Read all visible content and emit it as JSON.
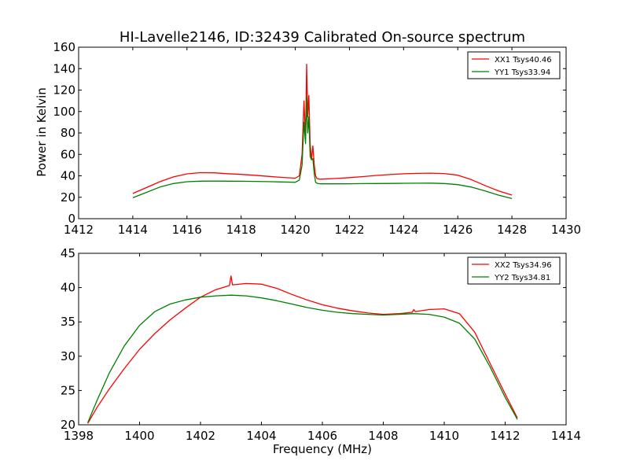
{
  "figure": {
    "title": "HI-Lavelle2146, ID:32439 Calibrated On-source spectrum",
    "ylabel": "Power in Kelvin",
    "xlabel": "Frequency (MHz)"
  },
  "chart_data": [
    {
      "type": "line",
      "title": "HI-Lavelle2146, ID:32439 Calibrated On-source spectrum",
      "xlabel": "",
      "ylabel": "Power in Kelvin",
      "xlim": [
        1412,
        1430
      ],
      "ylim": [
        0,
        160
      ],
      "xticks": [
        1412,
        1414,
        1416,
        1418,
        1420,
        1422,
        1424,
        1426,
        1428,
        1430
      ],
      "yticks": [
        0,
        20,
        40,
        60,
        80,
        100,
        120,
        140,
        160
      ],
      "grid": false,
      "legend_position": "top-right",
      "series": [
        {
          "name": "XX1 Tsys40.46",
          "color": "#ff0000",
          "x": [
            1414.0,
            1414.5,
            1415.0,
            1415.5,
            1416.0,
            1416.5,
            1417.0,
            1417.5,
            1418.0,
            1418.5,
            1419.0,
            1419.5,
            1420.0,
            1420.15,
            1420.25,
            1420.32,
            1420.38,
            1420.42,
            1420.46,
            1420.5,
            1420.55,
            1420.6,
            1420.65,
            1420.7,
            1420.75,
            1420.8,
            1420.9,
            1421.0,
            1421.5,
            1422.0,
            1422.5,
            1423.0,
            1423.5,
            1424.0,
            1424.5,
            1425.0,
            1425.5,
            1426.0,
            1426.5,
            1427.0,
            1427.5,
            1428.0
          ],
          "y": [
            23.5,
            29.0,
            34.5,
            39.0,
            41.8,
            42.9,
            42.8,
            42.0,
            41.3,
            40.5,
            39.5,
            38.5,
            37.8,
            40.0,
            60.0,
            110.0,
            75.0,
            144.0,
            95.0,
            115.0,
            70.0,
            55.0,
            68.0,
            50.0,
            40.0,
            37.5,
            36.8,
            36.9,
            37.5,
            38.3,
            39.3,
            40.4,
            41.2,
            41.9,
            42.3,
            42.5,
            42.1,
            40.6,
            36.5,
            31.0,
            26.0,
            22.0
          ]
        },
        {
          "name": "YY1 Tsys33.94",
          "color": "#008000",
          "x": [
            1414.0,
            1414.5,
            1415.0,
            1415.5,
            1416.0,
            1416.5,
            1417.0,
            1417.5,
            1418.0,
            1418.5,
            1419.0,
            1419.5,
            1420.0,
            1420.15,
            1420.25,
            1420.32,
            1420.38,
            1420.42,
            1420.46,
            1420.5,
            1420.55,
            1420.6,
            1420.65,
            1420.7,
            1420.75,
            1420.8,
            1420.9,
            1421.0,
            1421.5,
            1422.0,
            1422.5,
            1423.0,
            1423.5,
            1424.0,
            1424.5,
            1425.0,
            1425.5,
            1426.0,
            1426.5,
            1427.0,
            1427.5,
            1428.0
          ],
          "y": [
            19.5,
            24.5,
            29.5,
            32.8,
            34.5,
            35.0,
            35.1,
            35.0,
            34.9,
            34.8,
            34.6,
            34.3,
            34.0,
            36.0,
            50.0,
            90.0,
            70.0,
            114.0,
            80.0,
            95.0,
            58.0,
            55.0,
            56.0,
            42.0,
            34.0,
            33.0,
            32.6,
            32.5,
            32.5,
            32.6,
            32.7,
            32.8,
            32.9,
            33.0,
            33.1,
            33.2,
            32.8,
            31.8,
            29.5,
            26.0,
            22.0,
            18.8
          ]
        }
      ]
    },
    {
      "type": "line",
      "title": "",
      "xlabel": "Frequency (MHz)",
      "ylabel": "",
      "xlim": [
        1398,
        1414
      ],
      "ylim": [
        20,
        45
      ],
      "xticks": [
        1398,
        1400,
        1402,
        1404,
        1406,
        1408,
        1410,
        1412,
        1414
      ],
      "yticks": [
        20,
        25,
        30,
        35,
        40,
        45
      ],
      "grid": false,
      "legend_position": "top-right",
      "series": [
        {
          "name": "XX2 Tsys34.96",
          "color": "#ff0000",
          "x": [
            1398.3,
            1398.6,
            1399.0,
            1399.5,
            1400.0,
            1400.5,
            1401.0,
            1401.5,
            1402.0,
            1402.5,
            1402.95,
            1403.0,
            1403.05,
            1403.5,
            1404.0,
            1404.5,
            1405.0,
            1405.5,
            1406.0,
            1406.5,
            1407.0,
            1407.5,
            1408.0,
            1408.5,
            1408.95,
            1409.0,
            1409.05,
            1409.5,
            1410.0,
            1410.5,
            1411.0,
            1411.5,
            1412.0,
            1412.4
          ],
          "y": [
            20.2,
            22.5,
            25.2,
            28.2,
            31.0,
            33.3,
            35.3,
            37.0,
            38.6,
            39.7,
            40.3,
            41.7,
            40.4,
            40.6,
            40.5,
            39.9,
            39.0,
            38.2,
            37.5,
            37.0,
            36.6,
            36.3,
            36.1,
            36.2,
            36.4,
            36.8,
            36.5,
            36.8,
            36.9,
            36.2,
            33.5,
            29.0,
            24.5,
            21.0
          ]
        },
        {
          "name": "YY2 Tsys34.81",
          "color": "#008000",
          "x": [
            1398.3,
            1398.6,
            1399.0,
            1399.5,
            1400.0,
            1400.5,
            1401.0,
            1401.5,
            1402.0,
            1402.5,
            1403.0,
            1403.5,
            1404.0,
            1404.5,
            1405.0,
            1405.5,
            1406.0,
            1406.5,
            1407.0,
            1407.5,
            1408.0,
            1408.5,
            1409.0,
            1409.5,
            1410.0,
            1410.5,
            1411.0,
            1411.5,
            1412.0,
            1412.4
          ],
          "y": [
            20.3,
            23.5,
            27.5,
            31.5,
            34.5,
            36.5,
            37.6,
            38.2,
            38.6,
            38.8,
            38.9,
            38.8,
            38.5,
            38.1,
            37.6,
            37.1,
            36.7,
            36.4,
            36.2,
            36.1,
            36.0,
            36.1,
            36.2,
            36.1,
            35.7,
            34.8,
            32.5,
            28.5,
            24.0,
            20.8
          ]
        }
      ]
    }
  ]
}
